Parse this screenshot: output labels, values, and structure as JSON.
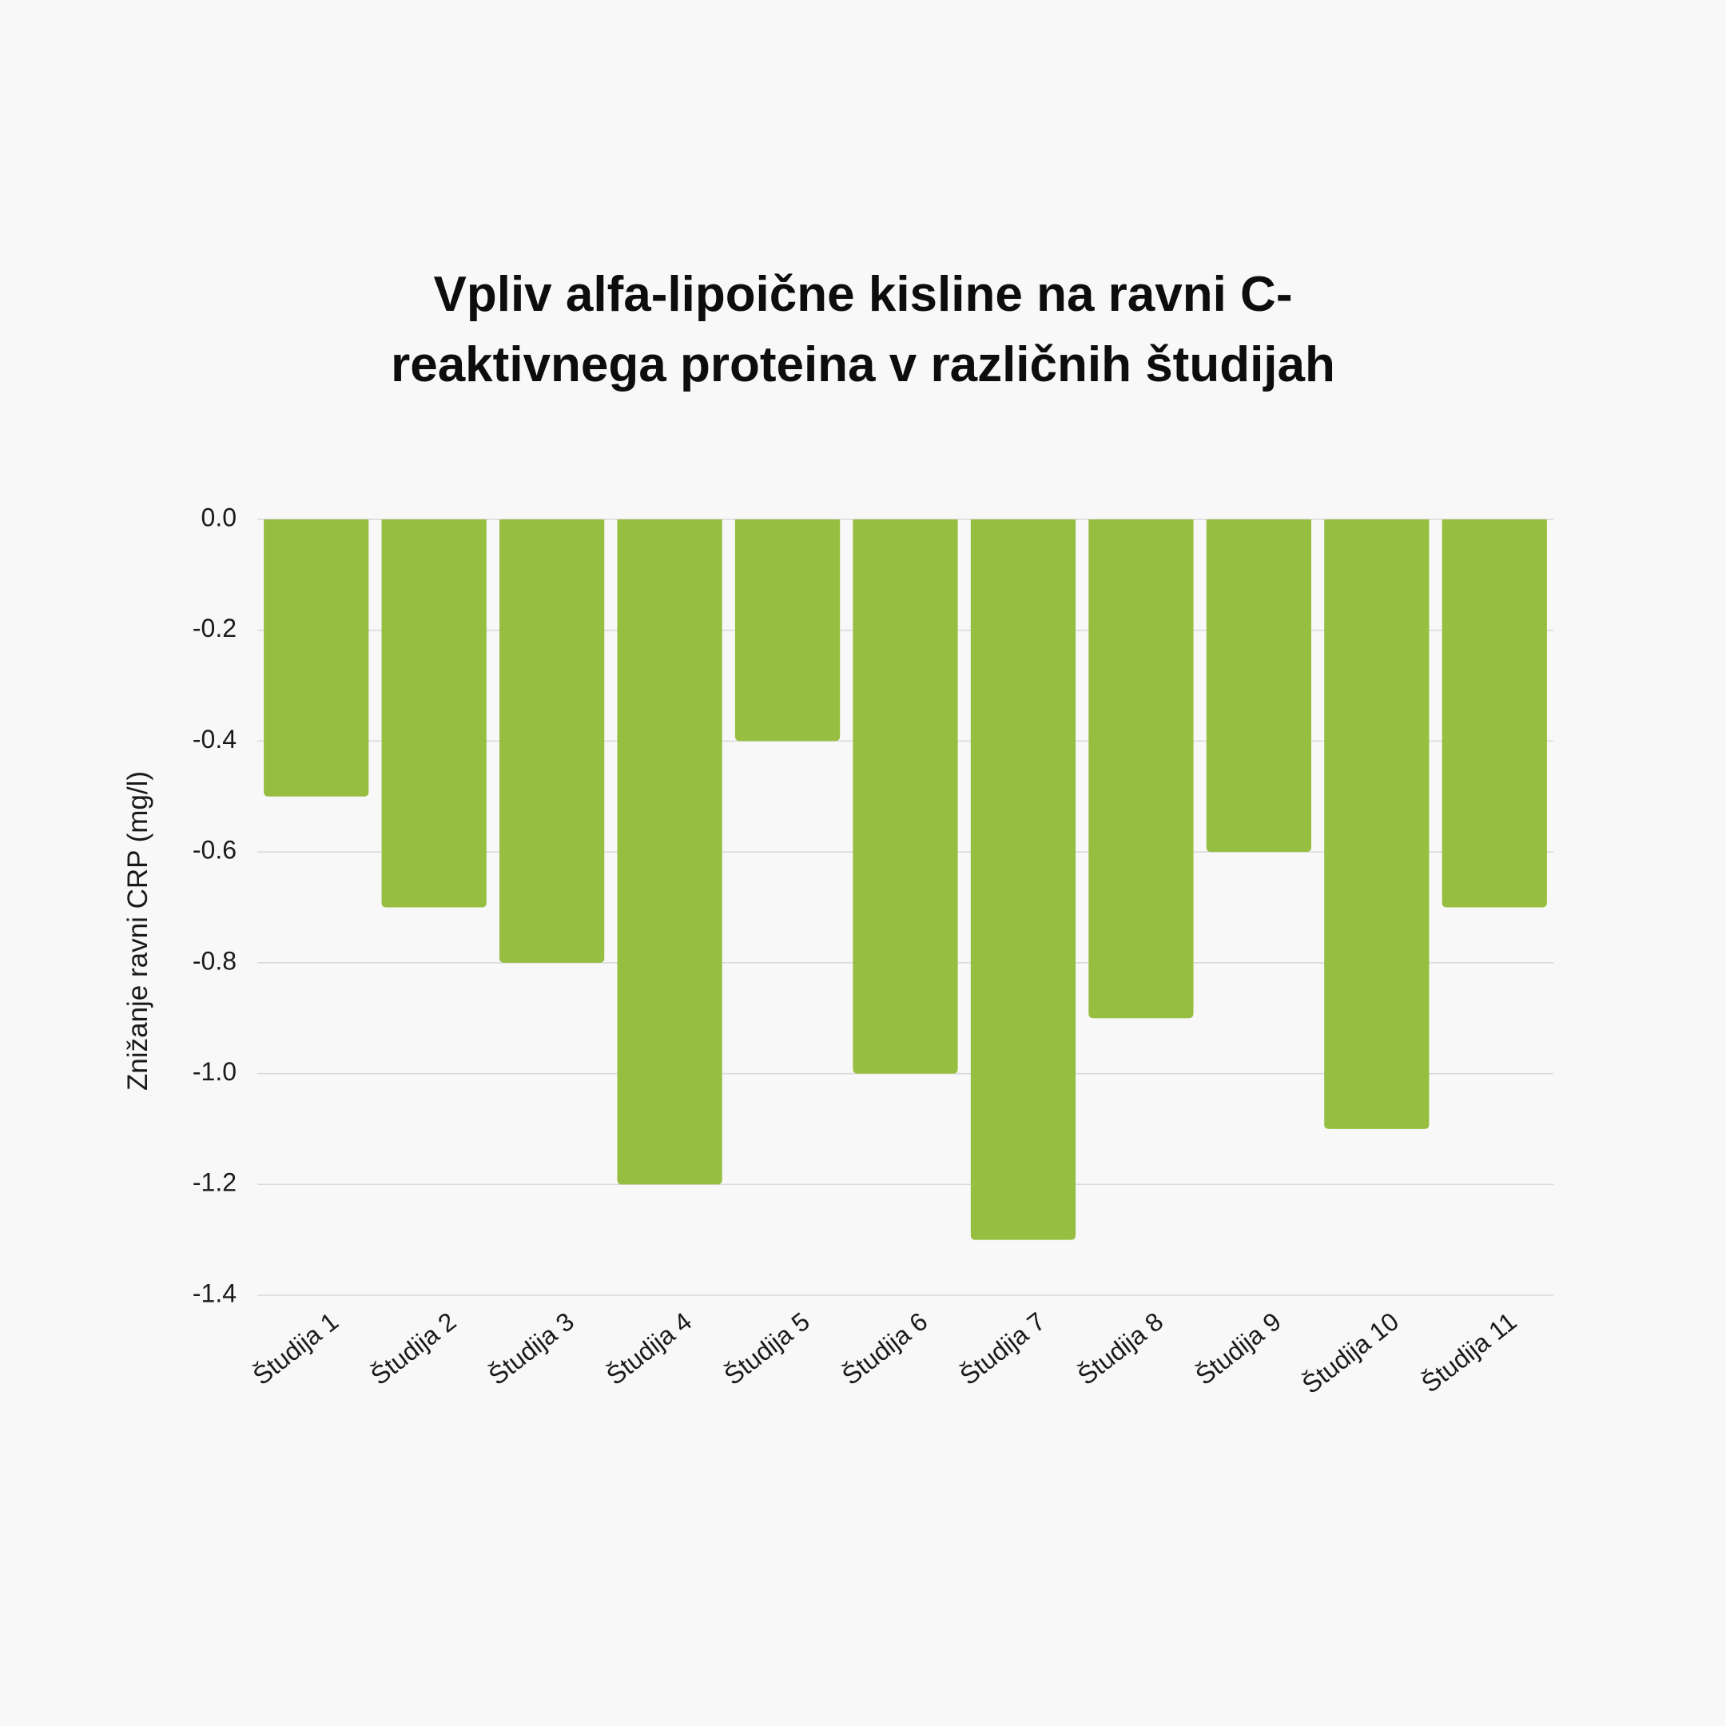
{
  "chart_data": {
    "type": "bar",
    "title": "Vpliv alfa-lipoične kisline na ravni C-reaktivnega proteina v različnih študijah",
    "xlabel": "",
    "ylabel": "Znižanje ravni CRP (mg/l)",
    "categories": [
      "Študija 1",
      "Študija 2",
      "Študija 3",
      "Študija 4",
      "Študija 5",
      "Študija 6",
      "Študija 7",
      "Študija 8",
      "Študija 9",
      "Študija 10",
      "Študija 11"
    ],
    "values": [
      -0.5,
      -0.7,
      -0.8,
      -1.2,
      -0.4,
      -1.0,
      -1.3,
      -0.9,
      -0.6,
      -1.1,
      -0.7
    ],
    "ylim": [
      -1.4,
      0.0
    ],
    "yticks": [
      "0.0",
      "-0.2",
      "-0.4",
      "-0.6",
      "-0.8",
      "-1.0",
      "-1.2",
      "-1.4"
    ],
    "grid": true,
    "legend": "none",
    "bar_color": "#96be40",
    "grid_color": "#d8d8d8"
  }
}
